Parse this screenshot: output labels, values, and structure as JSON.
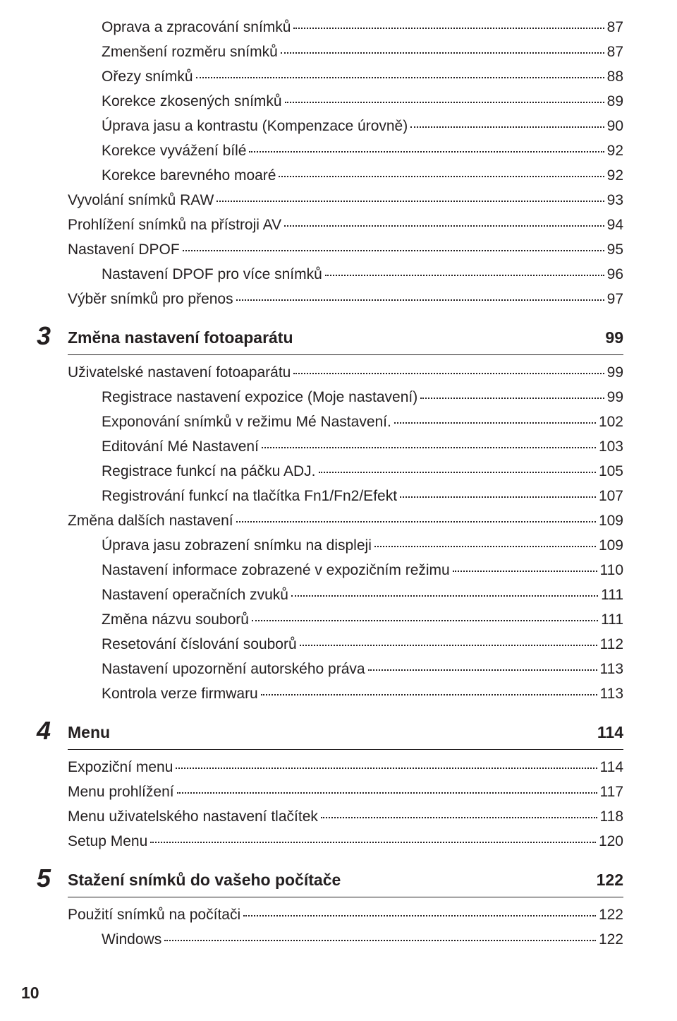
{
  "page_number": "10",
  "pre_items": [
    {
      "level": 2,
      "label": "Oprava a zpracování snímků",
      "page": "87"
    },
    {
      "level": 2,
      "label": "Zmenšení rozměru snímků",
      "page": "87"
    },
    {
      "level": 2,
      "label": "Ořezy snímků",
      "page": "88"
    },
    {
      "level": 2,
      "label": "Korekce zkosených snímků",
      "page": "89"
    },
    {
      "level": 2,
      "label": "Úprava jasu a kontrastu (Kompenzace úrovně)",
      "page": "90"
    },
    {
      "level": 2,
      "label": "Korekce vyvážení bílé",
      "page": "92"
    },
    {
      "level": 2,
      "label": "Korekce barevného moaré",
      "page": "92"
    },
    {
      "level": 1,
      "label": "Vyvolání snímků RAW",
      "page": "93"
    },
    {
      "level": 1,
      "label": "Prohlížení snímků na přístroji AV",
      "page": "94"
    },
    {
      "level": 1,
      "label": "Nastavení DPOF",
      "page": "95"
    },
    {
      "level": 2,
      "label": "Nastavení DPOF pro více snímků",
      "page": "96"
    },
    {
      "level": 1,
      "label": "Výběr snímků pro přenos",
      "page": "97"
    }
  ],
  "sections": [
    {
      "num": "3",
      "title": "Změna nastavení fotoaparátu",
      "page": "99",
      "items": [
        {
          "level": 1,
          "label": "Uživatelské nastavení fotoaparátu",
          "page": "99"
        },
        {
          "level": 2,
          "label": "Registrace nastavení expozice (Moje nastavení)",
          "page": "99"
        },
        {
          "level": 2,
          "label": "Exponování snímků v režimu Mé Nastavení.",
          "page": "102"
        },
        {
          "level": 2,
          "label": "Editování Mé Nastavení",
          "page": "103"
        },
        {
          "level": 2,
          "label": "Registrace funkcí na páčku ADJ.",
          "page": "105"
        },
        {
          "level": 2,
          "label": "Registrování funkcí na tlačítka Fn1/Fn2/Efekt",
          "page": "107"
        },
        {
          "level": 1,
          "label": "Změna dalších nastavení",
          "page": "109"
        },
        {
          "level": 2,
          "label": "Úprava jasu zobrazení snímku na displeji",
          "page": "109"
        },
        {
          "level": 2,
          "label": "Nastavení informace zobrazené v expozičním režimu",
          "page": "110"
        },
        {
          "level": 2,
          "label": "Nastavení operačních zvuků",
          "page": "111"
        },
        {
          "level": 2,
          "label": "Změna názvu souborů",
          "page": "111"
        },
        {
          "level": 2,
          "label": "Resetování číslování souborů",
          "page": "112"
        },
        {
          "level": 2,
          "label": "Nastavení upozornění autorského práva",
          "page": "113"
        },
        {
          "level": 2,
          "label": "Kontrola verze firmwaru",
          "page": "113"
        }
      ]
    },
    {
      "num": "4",
      "title": "Menu",
      "page": "114",
      "items": [
        {
          "level": 1,
          "label": "Expoziční menu",
          "page": "114"
        },
        {
          "level": 1,
          "label": "Menu prohlížení",
          "page": "117"
        },
        {
          "level": 1,
          "label": "Menu uživatelského nastavení tlačítek",
          "page": "118"
        },
        {
          "level": 1,
          "label": "Setup Menu",
          "page": "120"
        }
      ]
    },
    {
      "num": "5",
      "title": "Stažení snímků do vašeho počítače",
      "page": "122",
      "items": [
        {
          "level": 1,
          "label": "Použití snímků na počítači",
          "page": "122"
        },
        {
          "level": 2,
          "label": "Windows",
          "page": "122"
        }
      ]
    }
  ]
}
